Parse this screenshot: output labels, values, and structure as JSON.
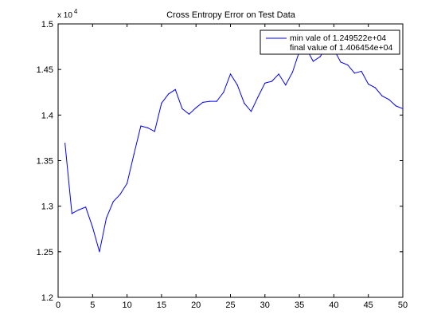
{
  "chart_data": {
    "type": "line",
    "title": "Cross Entropy Error on Test Data",
    "xlabel": "",
    "ylabel": "",
    "xlim": [
      0,
      50
    ],
    "ylim": [
      1.2,
      1.5
    ],
    "y_scale_multiplier_base": "x 10",
    "y_scale_multiplier_exponent": "4",
    "xticks": [
      0,
      5,
      10,
      15,
      20,
      25,
      30,
      35,
      40,
      45,
      50
    ],
    "yticks": [
      1.2,
      1.25,
      1.3,
      1.35,
      1.4,
      1.45,
      1.5
    ],
    "xtick_labels": [
      "0",
      "5",
      "10",
      "15",
      "20",
      "25",
      "30",
      "35",
      "40",
      "45",
      "50"
    ],
    "ytick_labels": [
      "1.2",
      "1.25",
      "1.3",
      "1.35",
      "1.4",
      "1.45",
      "1.5"
    ],
    "grid": false,
    "legend_position": "top-right",
    "legend_lines": [
      "min vale of 1.249522e+04",
      "final value of 1.406454e+04"
    ],
    "series": [
      {
        "color": "#0000ff",
        "x": [
          1,
          2,
          3,
          4,
          5,
          6,
          7,
          8,
          9,
          10,
          11,
          12,
          13,
          14,
          15,
          16,
          17,
          18,
          19,
          20,
          21,
          22,
          23,
          24,
          25,
          26,
          27,
          28,
          29,
          30,
          31,
          32,
          33,
          34,
          35,
          36,
          37,
          38,
          39,
          40,
          41,
          42,
          43,
          44,
          45,
          46,
          47,
          48,
          49,
          50
        ],
        "values": [
          1.369,
          1.292,
          1.296,
          1.299,
          1.277,
          1.25,
          1.287,
          1.305,
          1.313,
          1.325,
          1.357,
          1.388,
          1.386,
          1.382,
          1.413,
          1.423,
          1.428,
          1.407,
          1.401,
          1.408,
          1.414,
          1.415,
          1.415,
          1.425,
          1.445,
          1.433,
          1.413,
          1.404,
          1.42,
          1.435,
          1.437,
          1.445,
          1.433,
          1.447,
          1.47,
          1.473,
          1.459,
          1.464,
          1.475,
          1.472,
          1.458,
          1.455,
          1.446,
          1.448,
          1.434,
          1.43,
          1.421,
          1.417,
          1.41,
          1.407
        ]
      }
    ]
  }
}
